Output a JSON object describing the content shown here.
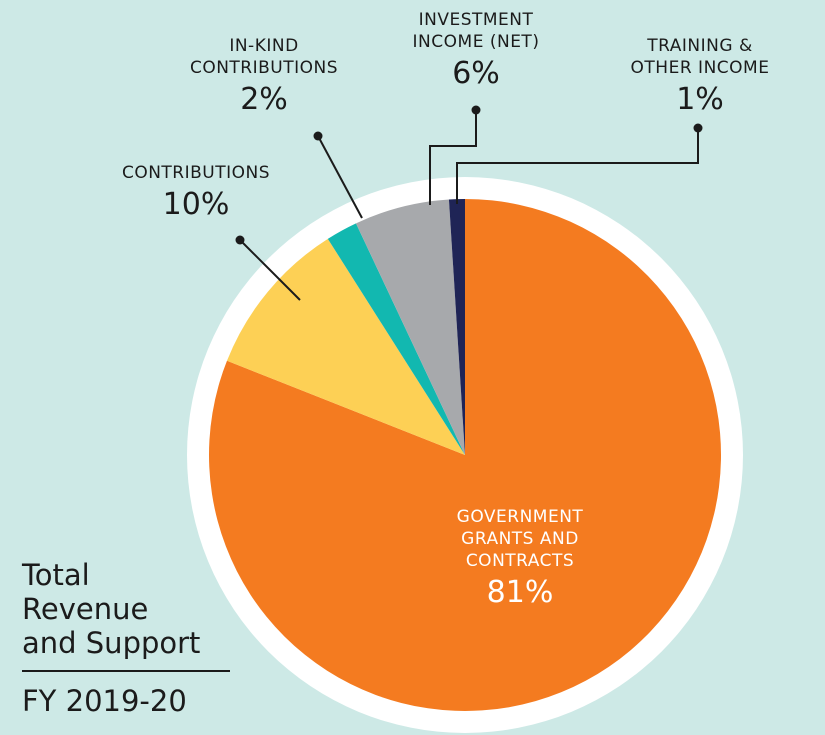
{
  "chart_data": {
    "type": "pie",
    "slices": [
      {
        "label_lines": [
          "GOVERNMENT",
          "GRANTS AND",
          "CONTRACTS"
        ],
        "value": 81,
        "value_text": "81%",
        "color": "#f47b20"
      },
      {
        "label_lines": [
          "CONTRIBUTIONS"
        ],
        "value": 10,
        "value_text": "10%",
        "color": "#fdd055"
      },
      {
        "label_lines": [
          "IN-KIND",
          "CONTRIBUTIONS"
        ],
        "value": 2,
        "value_text": "2%",
        "color": "#12b8b0"
      },
      {
        "label_lines": [
          "INVESTMENT",
          "INCOME (NET)"
        ],
        "value": 6,
        "value_text": "6%",
        "color": "#a7a9ac"
      },
      {
        "label_lines": [
          "TRAINING &",
          "OTHER INCOME"
        ],
        "value": 1,
        "value_text": "1%",
        "color": "#1f2456"
      }
    ],
    "background_color": "#cde9e6",
    "ring_color": "#ffffff",
    "leader_color": "#1b1b1b"
  },
  "caption": {
    "title_lines": [
      "Total",
      "Revenue",
      "and Support"
    ],
    "period": "FY 2019-20"
  }
}
